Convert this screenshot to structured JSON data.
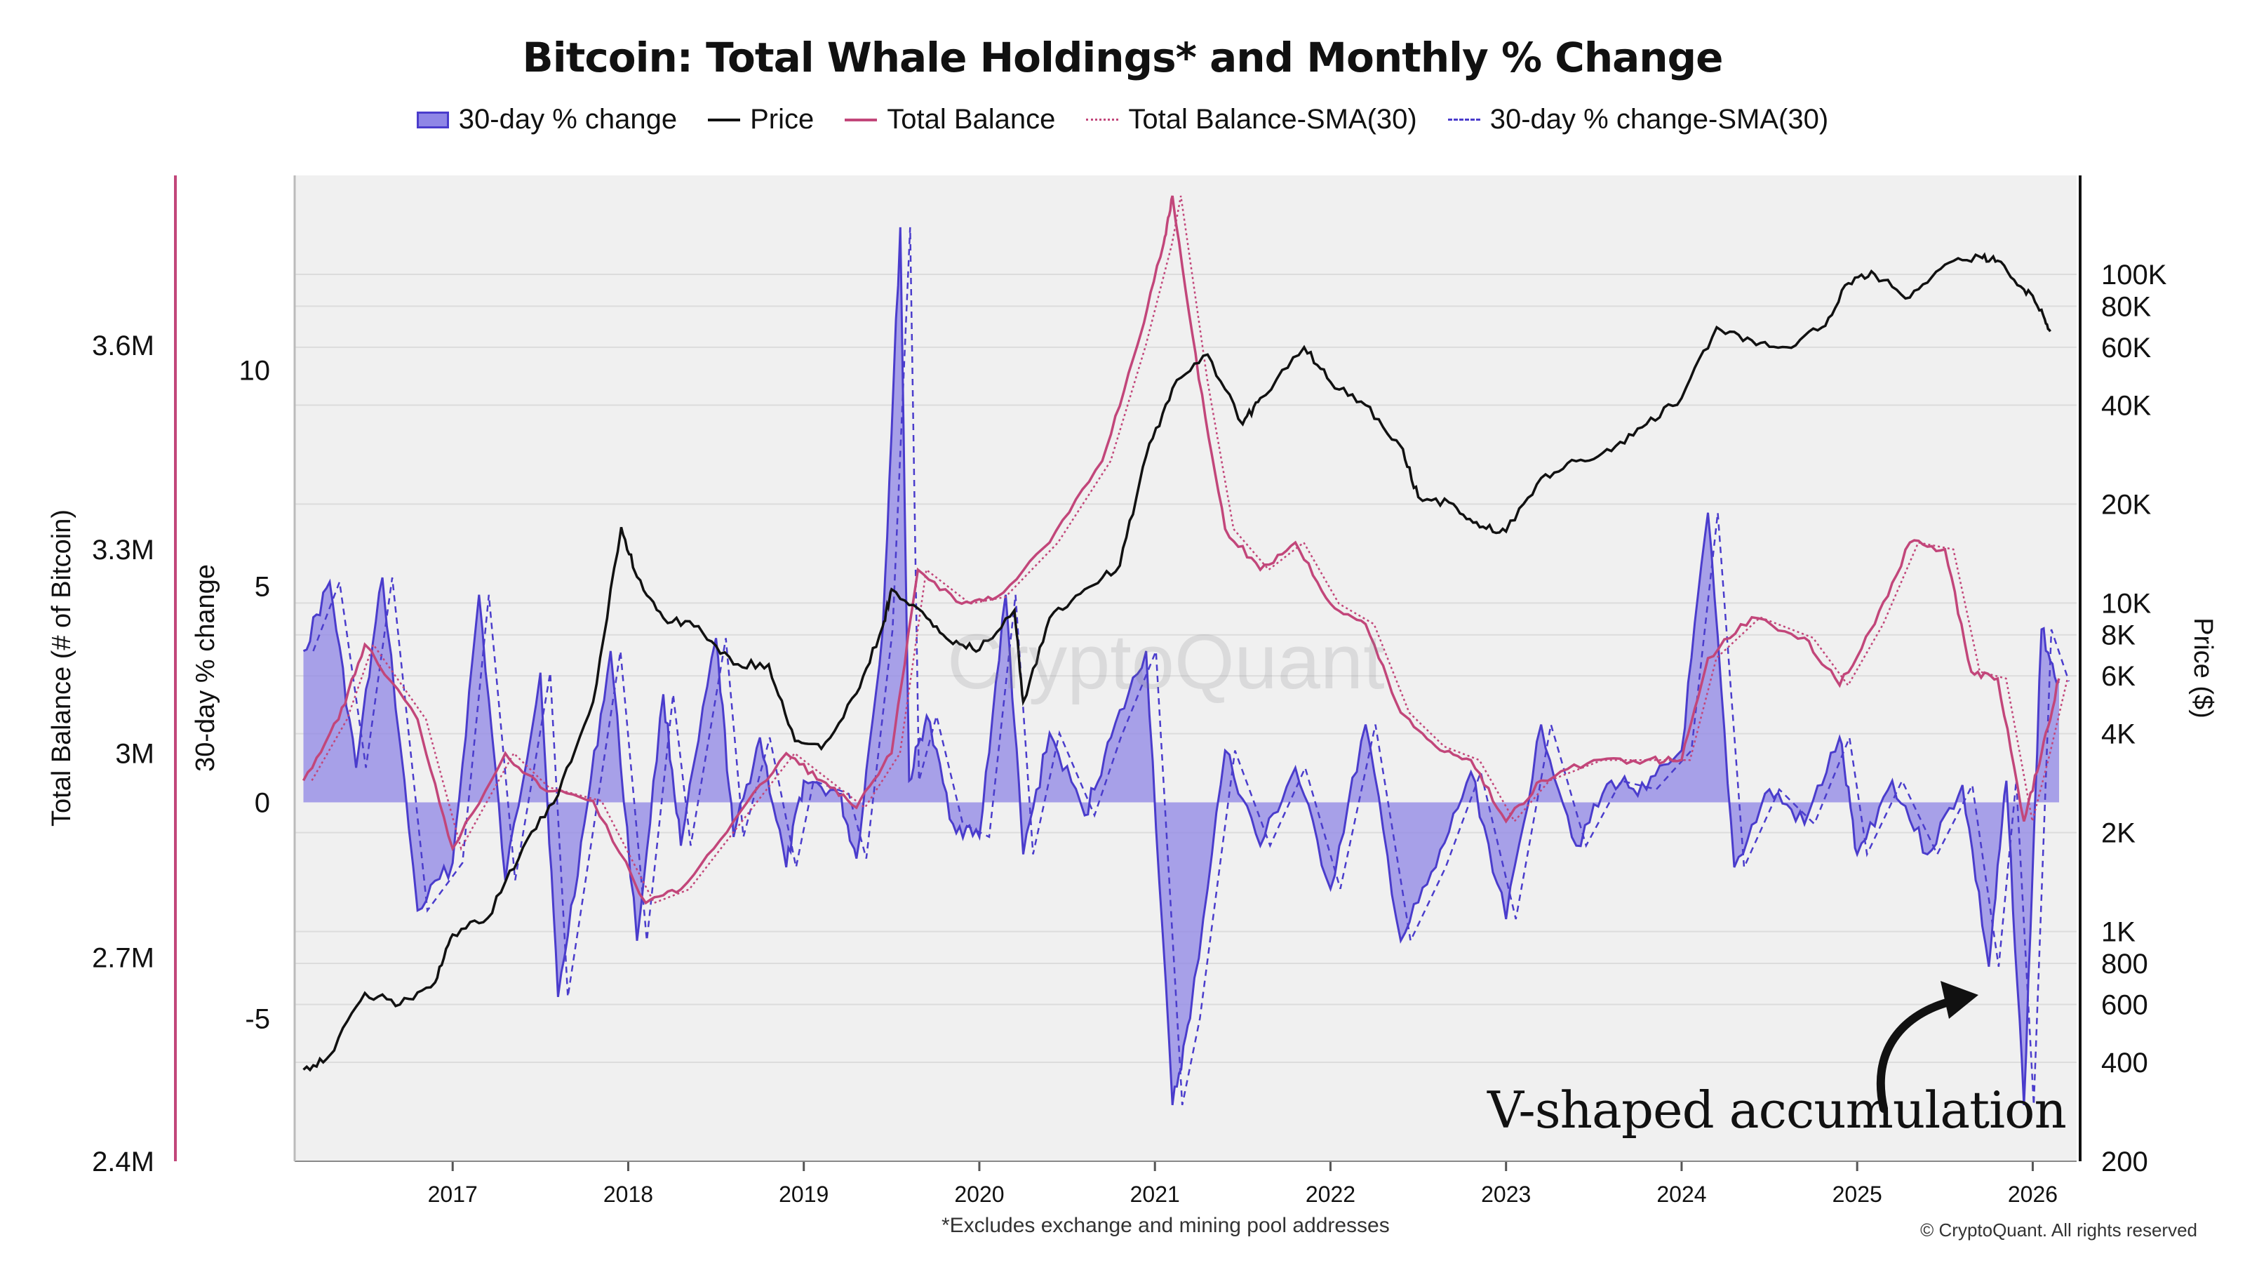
{
  "chart_data": {
    "type": "line",
    "title": "Bitcoin: Total Whale Holdings* and Monthly % Change",
    "footnote": "*Excludes exchange and mining pool addresses",
    "copyright": "© CryptoQuant. All rights reserved",
    "watermark": "CryptoQuant",
    "annotation": "V-shaped accumulation",
    "legend": [
      {
        "label": "30-day % change",
        "style": "bar",
        "color": "#4a3ccc"
      },
      {
        "label": "Price",
        "style": "line",
        "color": "#111111"
      },
      {
        "label": "Total Balance",
        "style": "line",
        "color": "#c2467a"
      },
      {
        "label": "Total Balance-SMA(30)",
        "style": "dotted",
        "color": "#c2467a"
      },
      {
        "label": "30-day % change-SMA(30)",
        "style": "dashed",
        "color": "#4a3ccc"
      }
    ],
    "axes": {
      "x": {
        "label": "",
        "ticks": [
          "2017",
          "2018",
          "2019",
          "2020",
          "2021",
          "2022",
          "2023",
          "2024",
          "2025",
          "2026"
        ],
        "range": [
          2016.1,
          2026.25
        ]
      },
      "y_balance": {
        "label": "Total Balance (# of Bitcoin)",
        "ticks": [
          "3.6M",
          "3.3M",
          "3M",
          "2.7M",
          "2.4M"
        ],
        "range": [
          2400000,
          3850000
        ]
      },
      "y_change": {
        "label": "30-day % change",
        "ticks": [
          "10",
          "5",
          "0",
          "-5"
        ],
        "range": [
          -8.3,
          14.5
        ]
      },
      "y_price": {
        "label": "Price ($)",
        "scale": "log",
        "ticks": [
          "100K",
          "80K",
          "60K",
          "40K",
          "20K",
          "10K",
          "8K",
          "6K",
          "4K",
          "2K",
          "1K",
          "800",
          "600",
          "400",
          "200"
        ],
        "tick_values": [
          100000,
          80000,
          60000,
          40000,
          20000,
          10000,
          8000,
          6000,
          4000,
          2000,
          1000,
          800,
          600,
          400,
          200
        ],
        "range": [
          200,
          200000
        ]
      }
    },
    "series": [
      {
        "name": "30-day % change",
        "axis": "y_change",
        "x": [
          2016.15,
          2016.3,
          2016.45,
          2016.6,
          2016.8,
          2017.0,
          2017.15,
          2017.3,
          2017.5,
          2017.6,
          2017.75,
          2017.9,
          2018.05,
          2018.2,
          2018.3,
          2018.5,
          2018.6,
          2018.75,
          2018.9,
          2019.0,
          2019.2,
          2019.3,
          2019.45,
          2019.55,
          2019.6,
          2019.7,
          2019.85,
          2020.0,
          2020.15,
          2020.25,
          2020.4,
          2020.6,
          2020.75,
          2020.95,
          2021.1,
          2021.2,
          2021.4,
          2021.6,
          2021.8,
          2022.0,
          2022.2,
          2022.4,
          2022.6,
          2022.8,
          2023.0,
          2023.2,
          2023.4,
          2023.6,
          2023.8,
          2024.0,
          2024.15,
          2024.3,
          2024.5,
          2024.7,
          2024.9,
          2025.0,
          2025.2,
          2025.4,
          2025.6,
          2025.75,
          2025.85,
          2025.95,
          2026.05,
          2026.15
        ],
        "values": [
          3.5,
          5.1,
          0.8,
          5.2,
          -2.5,
          -1.4,
          4.8,
          -1.8,
          3.0,
          -4.5,
          -0.5,
          3.5,
          -3.2,
          2.5,
          -1.0,
          3.8,
          -0.8,
          1.5,
          -1.5,
          0.5,
          0.2,
          -1.3,
          4.0,
          13.3,
          0.5,
          2.0,
          -0.5,
          -0.8,
          4.8,
          -1.2,
          1.6,
          -0.3,
          1.5,
          3.5,
          -7.0,
          -5.0,
          1.2,
          -1.0,
          0.8,
          -2.0,
          1.8,
          -3.2,
          -1.5,
          0.7,
          -2.7,
          1.8,
          -1.0,
          0.5,
          0.3,
          1.2,
          6.7,
          -1.5,
          0.3,
          -0.5,
          1.5,
          -1.2,
          0.5,
          -1.2,
          0.4,
          -3.8,
          0.5,
          -7.0,
          4.0,
          2.8
        ]
      },
      {
        "name": "Price",
        "axis": "y_price",
        "x": [
          2016.15,
          2016.3,
          2016.5,
          2016.7,
          2016.9,
          2017.0,
          2017.2,
          2017.4,
          2017.6,
          2017.8,
          2017.96,
          2018.05,
          2018.2,
          2018.4,
          2018.6,
          2018.8,
          2018.95,
          2019.1,
          2019.3,
          2019.45,
          2019.5,
          2019.7,
          2019.85,
          2020.0,
          2020.2,
          2020.25,
          2020.4,
          2020.6,
          2020.8,
          2020.95,
          2021.1,
          2021.3,
          2021.5,
          2021.6,
          2021.85,
          2022.0,
          2022.2,
          2022.4,
          2022.5,
          2022.7,
          2022.85,
          2023.0,
          2023.2,
          2023.4,
          2023.6,
          2023.8,
          2024.0,
          2024.2,
          2024.4,
          2024.6,
          2024.8,
          2024.95,
          2025.1,
          2025.3,
          2025.5,
          2025.7,
          2025.8,
          2025.95,
          2026.05,
          2026.1
        ],
        "values": [
          380,
          420,
          650,
          600,
          700,
          980,
          1100,
          1800,
          2600,
          5000,
          17000,
          12000,
          9000,
          8500,
          6500,
          6500,
          3800,
          3600,
          5300,
          8500,
          11000,
          9000,
          7500,
          7200,
          9500,
          5000,
          9000,
          11000,
          13000,
          28000,
          45000,
          57000,
          35000,
          42000,
          60000,
          47000,
          40000,
          30000,
          21000,
          20000,
          17000,
          16500,
          24000,
          27000,
          29000,
          35000,
          42000,
          69000,
          63000,
          60000,
          69000,
          94000,
          100000,
          85000,
          107000,
          113000,
          110000,
          90000,
          78000,
          67000
        ]
      },
      {
        "name": "Total Balance",
        "axis": "y_balance",
        "x": [
          2016.15,
          2016.35,
          2016.5,
          2016.8,
          2017.0,
          2017.3,
          2017.5,
          2017.8,
          2018.1,
          2018.3,
          2018.6,
          2018.9,
          2019.1,
          2019.3,
          2019.5,
          2019.65,
          2019.9,
          2020.1,
          2020.4,
          2020.7,
          2020.9,
          2021.05,
          2021.1,
          2021.25,
          2021.4,
          2021.6,
          2021.8,
          2022.0,
          2022.2,
          2022.4,
          2022.6,
          2022.8,
          2023.0,
          2023.2,
          2023.5,
          2023.8,
          2024.0,
          2024.15,
          2024.4,
          2024.7,
          2024.9,
          2025.1,
          2025.3,
          2025.5,
          2025.65,
          2025.8,
          2025.95,
          2026.05,
          2026.15
        ],
        "values": [
          2960000,
          3050000,
          3160000,
          3050000,
          2860000,
          3000000,
          2950000,
          2930000,
          2780000,
          2800000,
          2900000,
          3000000,
          2960000,
          2920000,
          3000000,
          3270000,
          3220000,
          3230000,
          3310000,
          3430000,
          3600000,
          3750000,
          3820000,
          3550000,
          3330000,
          3270000,
          3310000,
          3220000,
          3190000,
          3060000,
          3010000,
          2990000,
          2900000,
          2960000,
          2990000,
          2990000,
          2990000,
          3140000,
          3200000,
          3170000,
          3100000,
          3190000,
          3310000,
          3300000,
          3120000,
          3110000,
          2900000,
          3000000,
          3110000
        ]
      }
    ]
  }
}
